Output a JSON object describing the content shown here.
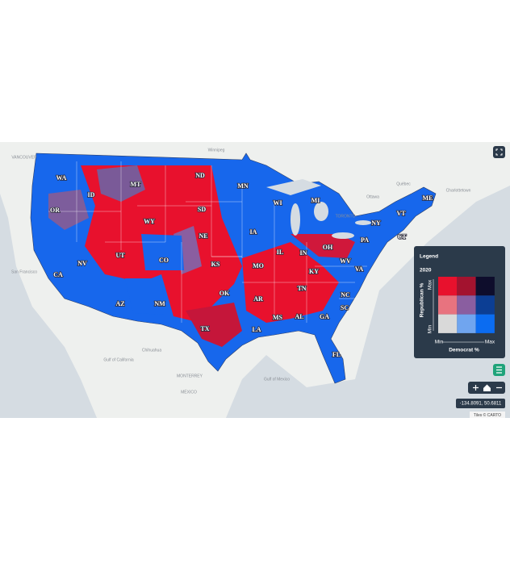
{
  "map": {
    "state_labels": [
      "WA",
      "MT",
      "ND",
      "MN",
      "ID",
      "OR",
      "SD",
      "WI",
      "MI",
      "ME",
      "VT",
      "NY",
      "WY",
      "NE",
      "IA",
      "PA",
      "NV",
      "UT",
      "CO",
      "KS",
      "MO",
      "IL",
      "IN",
      "OH",
      "WV",
      "VA",
      "KY",
      "CA",
      "TN",
      "NC",
      "OK",
      "AR",
      "AZ",
      "NM",
      "SC",
      "MS",
      "AL",
      "GA",
      "TX",
      "LA",
      "FL",
      "CT"
    ],
    "place_labels": [
      "VANCOUVER",
      "Winnipeg",
      "TORONTO",
      "Ottawa",
      "Québec",
      "Charlottetown",
      "San Francisco",
      "Chihuahua",
      "MONTERREY",
      "MÉXICO",
      "Gulf of California",
      "Gulf of Mexico"
    ]
  },
  "legend": {
    "title": "Legend",
    "year": "2020",
    "y_axis": "Republican %",
    "x_axis": "Democrat %",
    "y_min": "Min",
    "y_max": "Max",
    "x_min": "Min",
    "x_max": "Max",
    "colors": [
      [
        "#e8112d",
        "#a3132f",
        "#0e0d2c"
      ],
      [
        "#e8737f",
        "#8a5ea0",
        "#0c3e94"
      ],
      [
        "#d9d9d9",
        "#70a5ef",
        "#0b6cf1"
      ]
    ]
  },
  "coordinates": "-134.8091, 50.6811",
  "attribution": "Tiles © CARTO"
}
